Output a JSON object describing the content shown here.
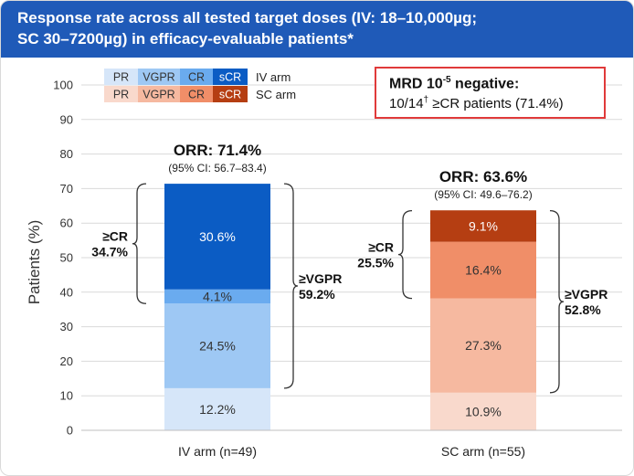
{
  "title": {
    "line1": "Response rate across all tested target doses (IV: 18–10,000µg;",
    "line2": "SC 30–7200µg) in efficacy-evaluable patients*"
  },
  "mrd": {
    "title_prefix": "MRD 10",
    "title_exp": "-5",
    "title_suffix": " negative:",
    "text_prefix": "10/14",
    "text_sup": "†",
    "text_suffix": " ≥CR patients (71.4%)"
  },
  "colors": {
    "iv": [
      "#d6e6f9",
      "#9ec8f4",
      "#6aabef",
      "#0b5cc4"
    ],
    "sc": [
      "#f9d9cc",
      "#f6b9a0",
      "#f08e68",
      "#b53e12"
    ]
  },
  "legend": {
    "categories": [
      "PR",
      "VGPR",
      "CR",
      "sCR"
    ],
    "iv_label": "IV arm",
    "sc_label": "SC arm"
  },
  "chart_data": {
    "type": "bar",
    "stacked": true,
    "ylabel": "Patients (%)",
    "ylim": [
      0,
      100
    ],
    "yticks": [
      0,
      10,
      20,
      30,
      40,
      50,
      60,
      70,
      80,
      90,
      100
    ],
    "grid": true,
    "categories": [
      "IV arm (n=49)",
      "SC arm (n=55)"
    ],
    "series": [
      {
        "name": "PR",
        "values": [
          12.2,
          10.9
        ]
      },
      {
        "name": "VGPR",
        "values": [
          24.5,
          27.3
        ]
      },
      {
        "name": "CR",
        "values": [
          4.1,
          16.4
        ]
      },
      {
        "name": "sCR",
        "values": [
          30.6,
          9.1
        ]
      }
    ],
    "orr": [
      {
        "label": "ORR: 71.4%",
        "ci": "(95% CI: 56.7–83.4)"
      },
      {
        "label": "ORR: 63.6%",
        "ci": "(95% CI: 49.6–76.2)"
      }
    ],
    "brackets": [
      {
        "bar": 0,
        "side": "left",
        "from": 36.7,
        "to": 71.4,
        "lines": [
          "≥CR",
          "34.7%"
        ]
      },
      {
        "bar": 0,
        "side": "right",
        "from": 12.2,
        "to": 71.4,
        "lines": [
          "≥VGPR",
          "59.2%"
        ]
      },
      {
        "bar": 1,
        "side": "left",
        "from": 38.2,
        "to": 63.6,
        "lines": [
          "≥CR",
          "25.5%"
        ]
      },
      {
        "bar": 1,
        "side": "right",
        "from": 10.9,
        "to": 63.6,
        "lines": [
          "≥VGPR",
          "52.8%"
        ]
      }
    ]
  }
}
